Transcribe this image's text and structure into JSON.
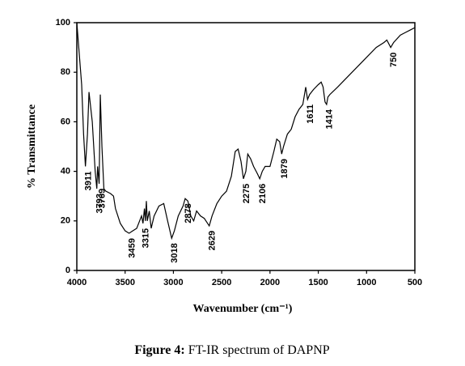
{
  "chart_data": {
    "type": "line",
    "x_label": "Wavenumber (cm⁻¹)",
    "y_label": "% Transmittance",
    "caption": {
      "label": "Figure 4:",
      "text": "FT-IR spectrum of DAPNP"
    },
    "xlim": [
      4000,
      500
    ],
    "xticks": [
      4000,
      3500,
      3000,
      2500,
      2000,
      1500,
      1000,
      500
    ],
    "ylim": [
      0,
      100
    ],
    "yticks": [
      0,
      20,
      40,
      60,
      80,
      100
    ],
    "grid": false,
    "x": [
      4000,
      3980,
      3950,
      3930,
      3911,
      3890,
      3874,
      3840,
      3810,
      3793,
      3785,
      3769,
      3757,
      3740,
      3720,
      3700,
      3650,
      3620,
      3600,
      3550,
      3500,
      3459,
      3420,
      3380,
      3350,
      3330,
      3315,
      3300,
      3290,
      3280,
      3270,
      3250,
      3230,
      3200,
      3150,
      3100,
      3060,
      3018,
      2990,
      2950,
      2900,
      2878,
      2850,
      2820,
      2790,
      2760,
      2720,
      2680,
      2629,
      2600,
      2550,
      2500,
      2450,
      2400,
      2360,
      2330,
      2300,
      2275,
      2250,
      2230,
      2200,
      2170,
      2130,
      2106,
      2080,
      2050,
      2000,
      1960,
      1930,
      1900,
      1879,
      1860,
      1820,
      1780,
      1740,
      1700,
      1660,
      1630,
      1611,
      1590,
      1550,
      1500,
      1470,
      1450,
      1430,
      1414,
      1400,
      1380,
      1300,
      1200,
      1100,
      1000,
      900,
      820,
      790,
      750,
      720,
      650,
      600,
      550,
      500
    ],
    "series": [
      {
        "name": "DAPNP",
        "color": "#000000",
        "values": [
          100,
          90,
          75,
          55,
          42,
          55,
          72,
          60,
          40,
          33,
          42,
          35,
          71,
          50,
          33,
          32,
          31,
          30,
          25,
          19,
          16,
          15,
          16,
          17,
          20,
          22,
          19,
          25,
          20,
          28,
          20,
          24,
          17,
          22,
          26,
          27,
          20,
          13,
          16,
          22,
          26,
          29,
          28,
          22,
          20,
          24,
          22,
          21,
          18,
          22,
          27,
          30,
          32,
          38,
          48,
          49,
          44,
          37,
          40,
          47,
          45,
          42,
          39,
          37,
          40,
          42,
          42,
          48,
          53,
          52,
          47,
          50,
          55,
          57,
          62,
          65,
          67,
          74,
          69,
          71,
          73,
          75,
          76,
          74,
          68,
          67,
          70,
          71,
          74,
          78,
          82,
          86,
          90,
          92,
          93,
          90,
          92,
          95,
          96,
          97,
          98
        ]
      }
    ],
    "annotations": [
      3911,
      3793,
      3769,
      3459,
      3315,
      3018,
      2878,
      2629,
      2275,
      2106,
      1879,
      1611,
      1414,
      750
    ]
  }
}
